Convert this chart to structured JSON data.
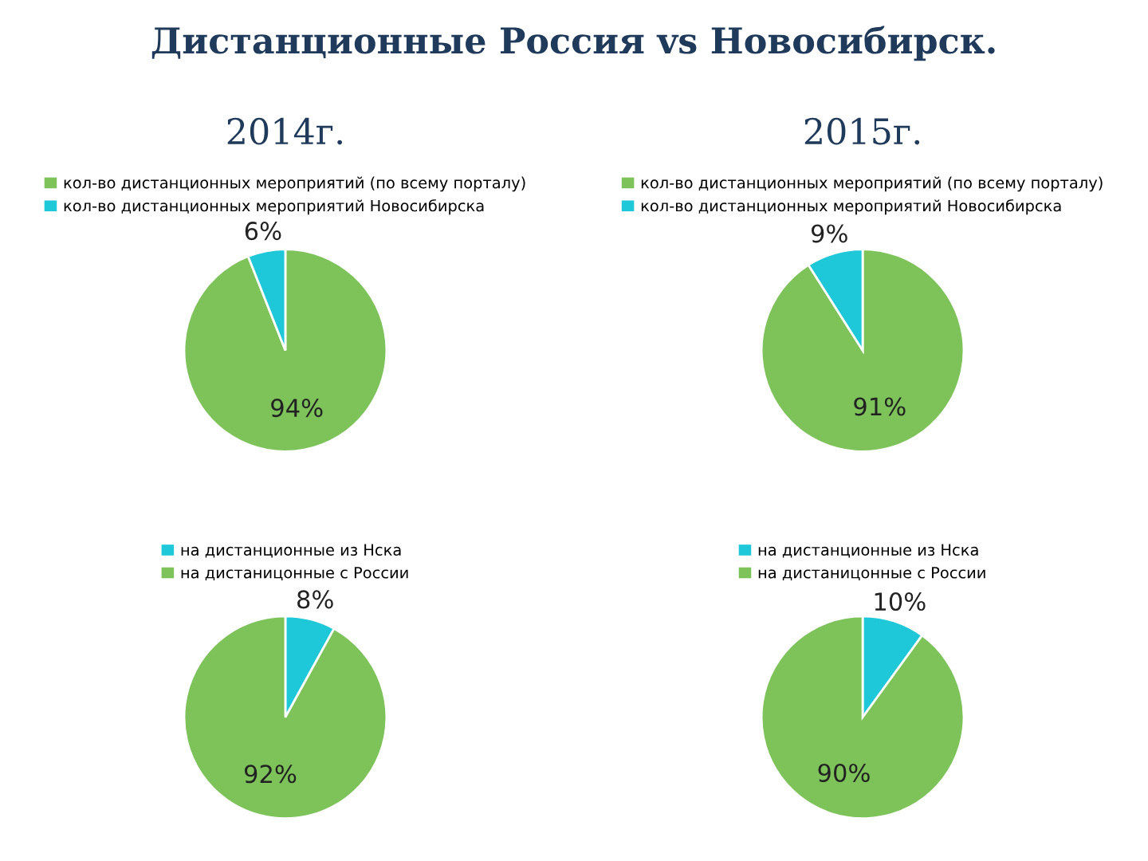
{
  "chart_data": [
    {
      "type": "pie",
      "title": "2014г.",
      "subtitle": "Дистанционные Россия vs Новосибирск.",
      "categories": [
        "кол-во дистанционных мероприятий (по всему порталу)",
        "кол-во дистанционных мероприятий Новосибирска"
      ],
      "values": [
        94,
        6
      ],
      "value_labels": [
        "94%",
        "6%"
      ],
      "colors": [
        "#7dc35a",
        "#1ec8d8"
      ],
      "legend": "top"
    },
    {
      "type": "pie",
      "title": "2015г.",
      "categories": [
        "кол-во дистанционных мероприятий (по всему порталу)",
        "кол-во дистанционных мероприятий Новосибирска"
      ],
      "values": [
        91,
        9
      ],
      "value_labels": [
        "91%",
        "9%"
      ],
      "colors": [
        "#7dc35a",
        "#1ec8d8"
      ],
      "legend": "top"
    },
    {
      "type": "pie",
      "categories": [
        "на дистанционные из Нска",
        "на дистаницонные с России"
      ],
      "values": [
        8,
        92
      ],
      "value_labels": [
        "8%",
        "92%"
      ],
      "colors": [
        "#1ec8d8",
        "#7dc35a"
      ],
      "legend": "top"
    },
    {
      "type": "pie",
      "categories": [
        "на дистанционные из Нска",
        "на дистаницонные с России"
      ],
      "values": [
        10,
        90
      ],
      "value_labels": [
        "10%",
        "90%"
      ],
      "colors": [
        "#1ec8d8",
        "#7dc35a"
      ],
      "legend": "top"
    }
  ]
}
